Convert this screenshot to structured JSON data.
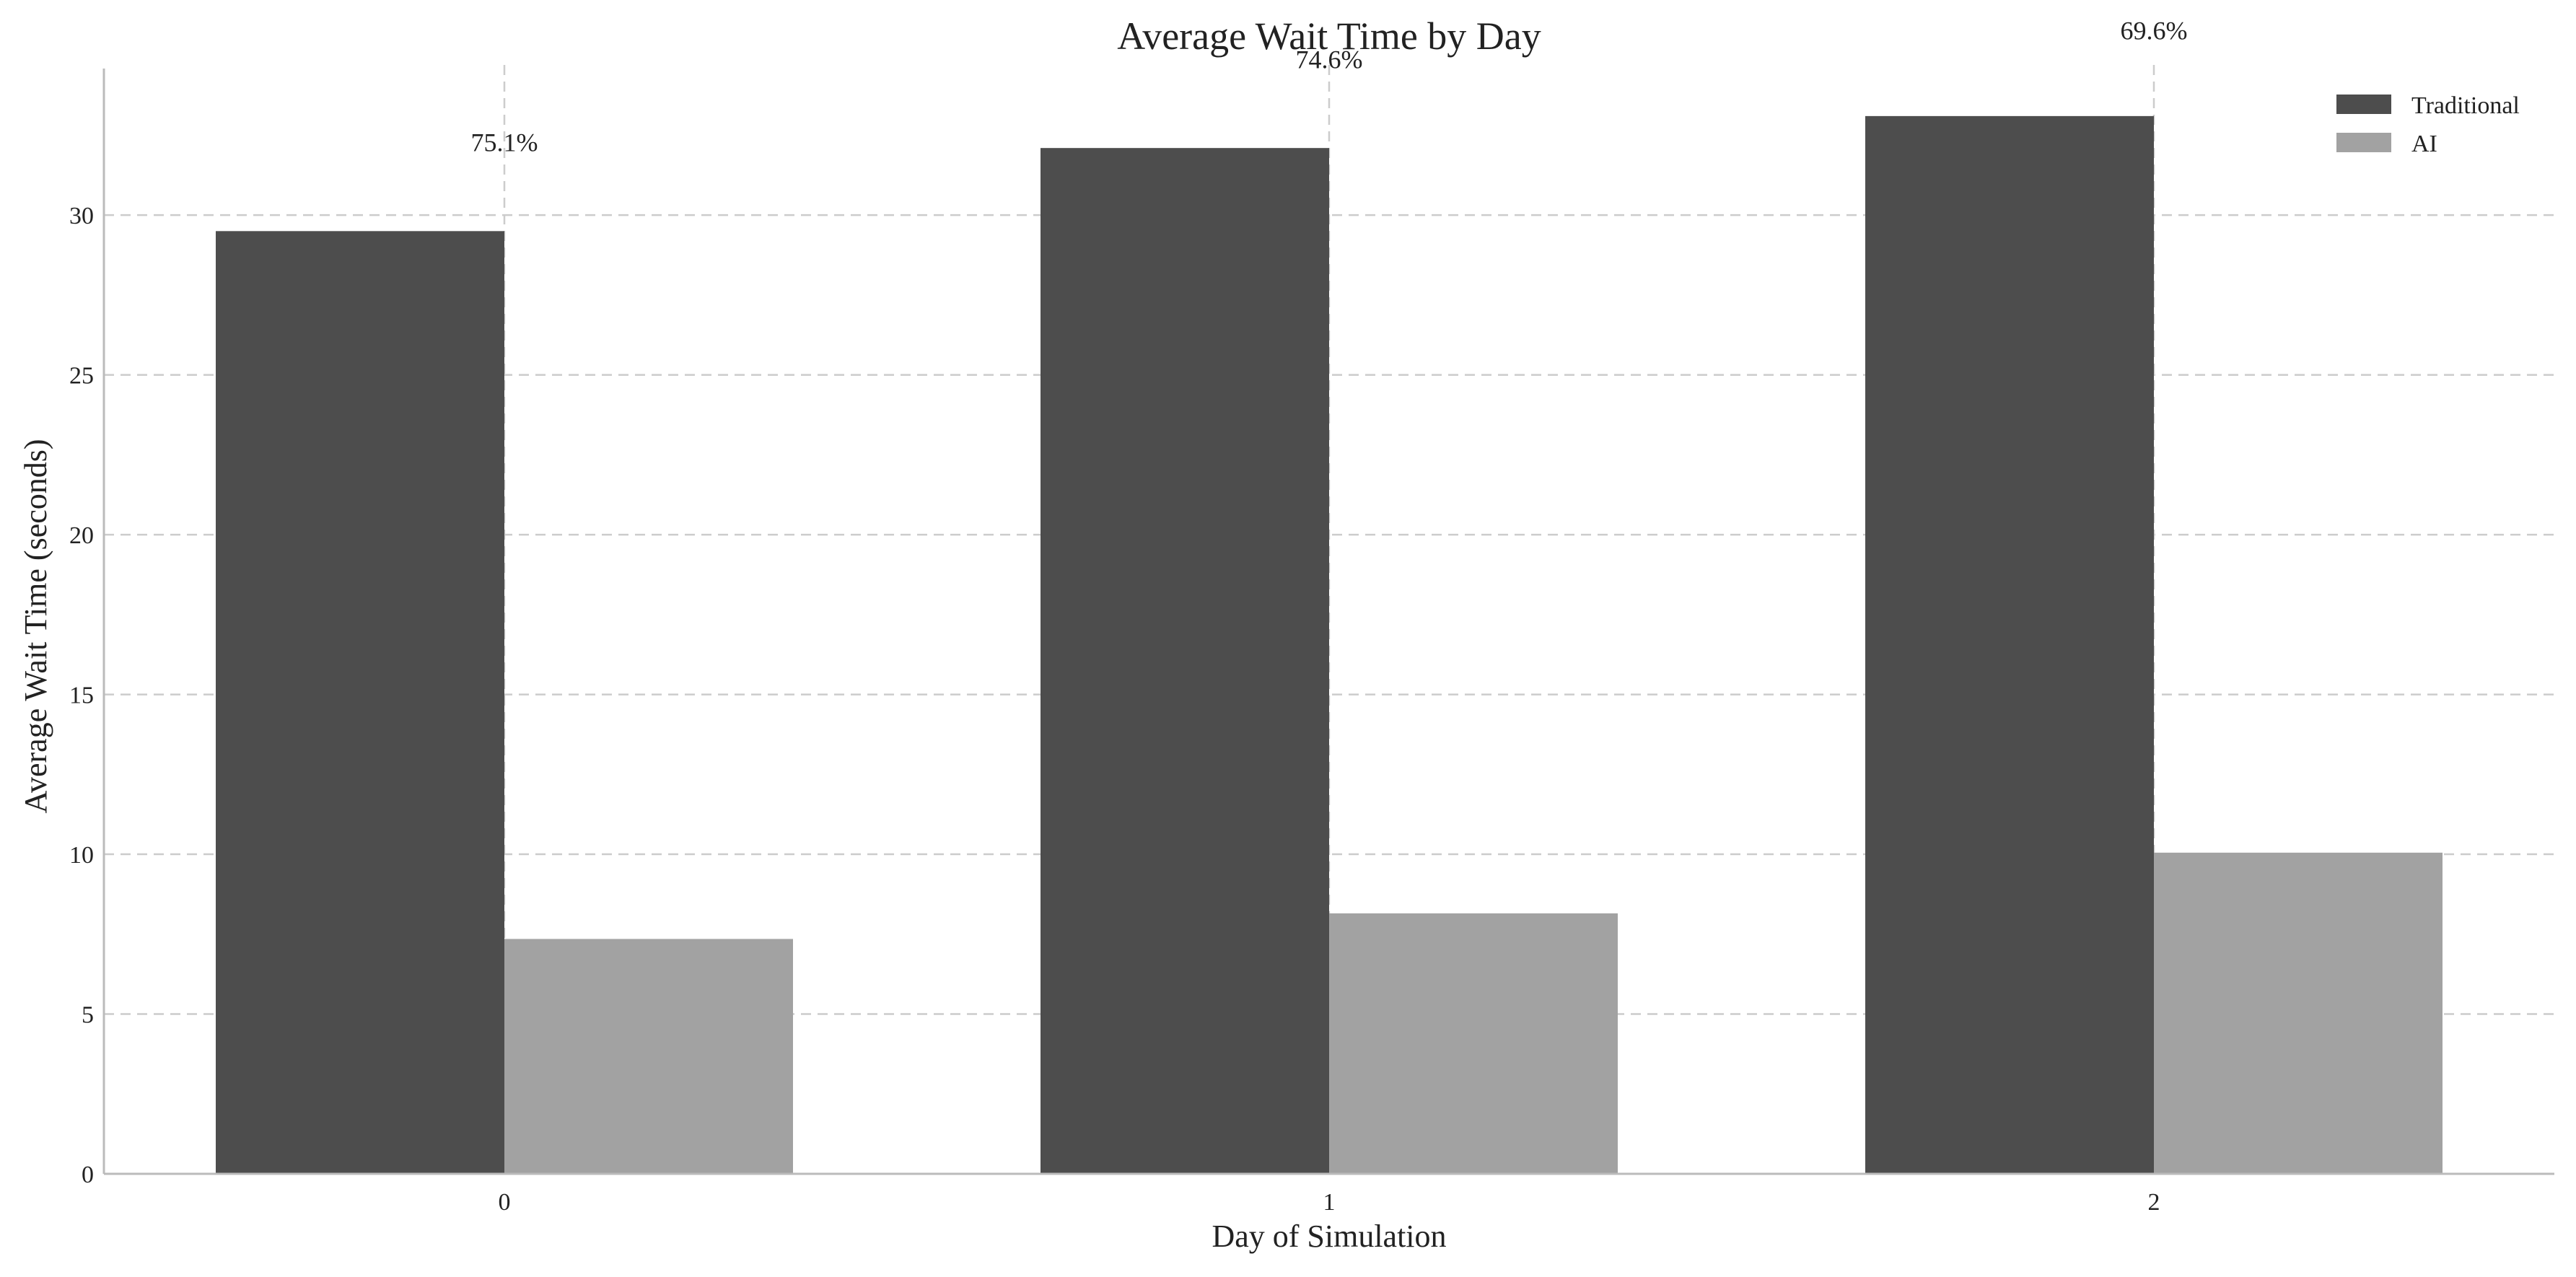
{
  "chart_data": {
    "type": "bar",
    "title": "Average Wait Time by Day",
    "xlabel": "Day of Simulation",
    "ylabel": "Average Wait Time (seconds)",
    "categories": [
      "0",
      "1",
      "2"
    ],
    "series": [
      {
        "name": "Traditional",
        "values": [
          29.5,
          32.1,
          33.1
        ],
        "color": "#4d4d4d"
      },
      {
        "name": "AI",
        "values": [
          7.35,
          8.15,
          10.05
        ],
        "color": "#a2a2a2"
      }
    ],
    "annotations": [
      "75.1%",
      "74.6%",
      "69.6%"
    ],
    "annotation_y": [
      32.0,
      34.6,
      35.5
    ],
    "ylim": [
      0,
      34.7
    ],
    "yticks": [
      0,
      5,
      10,
      15,
      20,
      25,
      30
    ],
    "grid": true,
    "legend_position": "top-right"
  }
}
